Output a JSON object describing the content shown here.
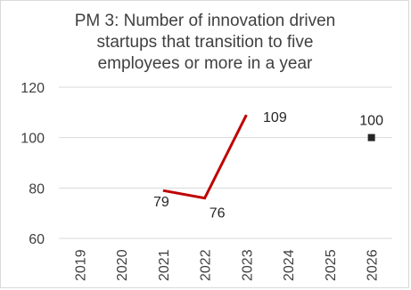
{
  "chart_data": {
    "type": "line",
    "title_lines": [
      "PM 3: Number of innovation driven",
      "startups that transition to five",
      "employees or more in a year"
    ],
    "categories": [
      "2019",
      "2020",
      "2021",
      "2022",
      "2023",
      "2024",
      "2025",
      "2026"
    ],
    "series": [
      {
        "values": [
          null,
          null,
          79,
          76,
          109,
          null,
          null,
          null
        ],
        "labels": [
          "",
          "",
          "79",
          "76",
          "109",
          "",
          "",
          ""
        ],
        "color": "#c00000",
        "marker": "none"
      },
      {
        "values": [
          null,
          null,
          null,
          null,
          null,
          null,
          null,
          100
        ],
        "labels": [
          "",
          "",
          "",
          "",
          "",
          "",
          "",
          "100"
        ],
        "color": "#262626",
        "marker": "square"
      }
    ],
    "ylim": [
      60,
      120
    ],
    "yticks": [
      60,
      80,
      100,
      120
    ],
    "grid": true,
    "legend": "none",
    "gridline_color": "#d9d9d9"
  }
}
